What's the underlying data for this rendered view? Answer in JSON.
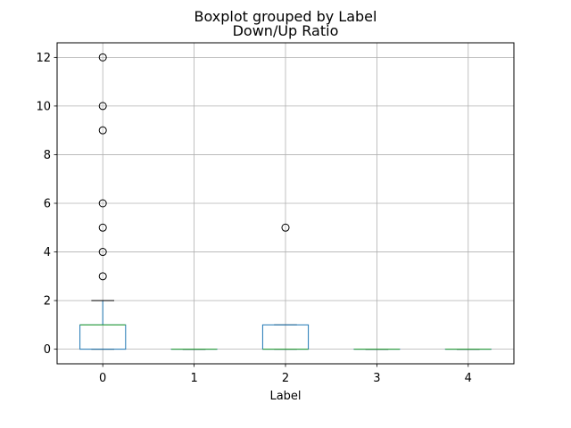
{
  "chart_data": {
    "type": "boxplot",
    "suptitle": "Boxplot grouped by Label",
    "title": "Down/Up Ratio",
    "xlabel": "Label",
    "ylabel": "",
    "categories": [
      "0",
      "1",
      "2",
      "3",
      "4"
    ],
    "ylim": [
      -0.6,
      12.6
    ],
    "yticks": [
      0,
      2,
      4,
      6,
      8,
      10,
      12
    ],
    "grid": true,
    "boxes": [
      {
        "category": "0",
        "whislo": 0,
        "q1": 0,
        "med": 1,
        "q3": 1,
        "whishi": 2,
        "fliers": [
          3,
          4,
          5,
          6,
          9,
          10,
          12
        ]
      },
      {
        "category": "1",
        "whislo": 0,
        "q1": 0,
        "med": 0,
        "q3": 0,
        "whishi": 0,
        "fliers": []
      },
      {
        "category": "2",
        "whislo": 0,
        "q1": 0,
        "med": 0,
        "q3": 1,
        "whishi": 1,
        "fliers": [
          5
        ]
      },
      {
        "category": "3",
        "whislo": 0,
        "q1": 0,
        "med": 0,
        "q3": 0,
        "whishi": 0,
        "fliers": []
      },
      {
        "category": "4",
        "whislo": 0,
        "q1": 0,
        "med": 0,
        "q3": 0,
        "whishi": 0,
        "fliers": []
      }
    ],
    "colors": {
      "box": "#1f77b4",
      "median": "#2ca02c",
      "whisker": "#1f77b4",
      "cap": "#000000",
      "flier": "#000000",
      "grid": "#b0b0b0"
    }
  }
}
